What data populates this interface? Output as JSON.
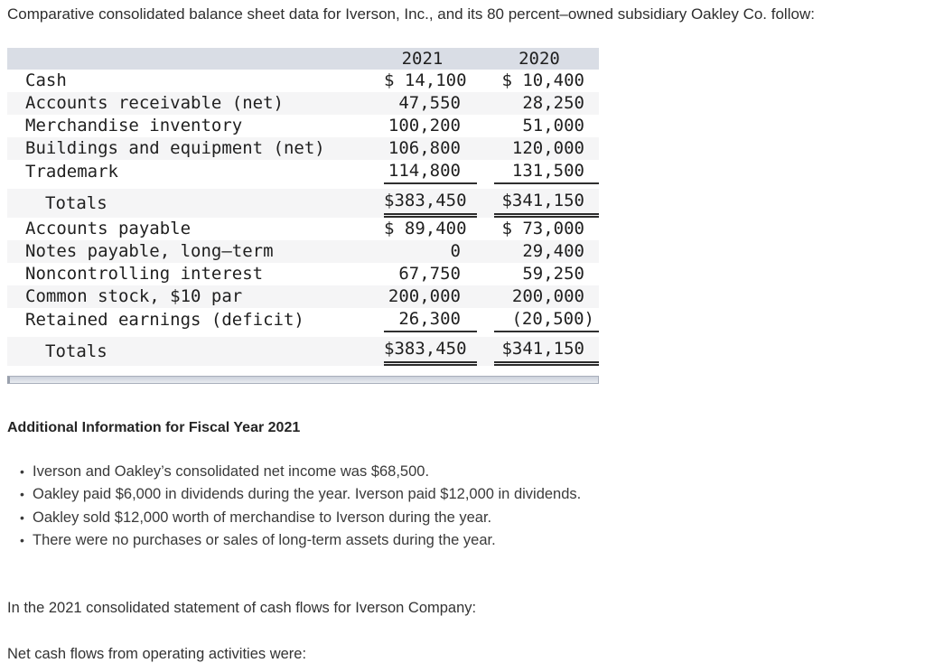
{
  "intro": "Comparative consolidated balance sheet data for Iverson, Inc., and its 80 percent–owned subsidiary Oakley Co. follow:",
  "balance_sheet": {
    "columns": {
      "year1": "2021",
      "year2": "2020"
    },
    "sections": [
      {
        "rows": [
          {
            "label": "Cash",
            "y2021": "$ 14,100",
            "y2020": "$ 10,400"
          },
          {
            "label": "Accounts receivable (net)",
            "y2021": "47,550",
            "y2020": "28,250"
          },
          {
            "label": "Merchandise inventory",
            "y2021": "100,200",
            "y2020": "51,000"
          },
          {
            "label": "Buildings and equipment (net)",
            "y2021": "106,800",
            "y2020": "120,000"
          },
          {
            "label": "Trademark",
            "y2021": "114,800",
            "y2020": "131,500",
            "rule_below": true
          }
        ],
        "total": {
          "label": "Totals",
          "y2021": "$383,450",
          "y2020": "$341,150"
        }
      },
      {
        "rows": [
          {
            "label": "Accounts payable",
            "y2021": "$ 89,400",
            "y2020": "$ 73,000"
          },
          {
            "label": "Notes payable, long–term",
            "y2021": "0",
            "y2020": "29,400"
          },
          {
            "label": "Noncontrolling interest",
            "y2021": "67,750",
            "y2020": "59,250"
          },
          {
            "label": "Common stock, $10 par",
            "y2021": "200,000",
            "y2020": "200,000"
          },
          {
            "label": "Retained earnings (deficit)",
            "y2021": "26,300",
            "y2020": "(20,500)",
            "rule_below": true
          }
        ],
        "total": {
          "label": "Totals",
          "y2021": "$383,450",
          "y2020": "$341,150"
        }
      }
    ]
  },
  "additional_info": {
    "heading": "Additional Information for Fiscal Year 2021",
    "bullet_glyph": "•",
    "bullets": [
      "Iverson and Oakley’s consolidated net income was $68,500.",
      "Oakley paid $6,000 in dividends during the year. Iverson paid $12,000 in dividends.",
      "Oakley sold $12,000 worth of merchandise to Iverson during the year.",
      "There were no purchases or sales of long-term assets during the year."
    ]
  },
  "closing": {
    "line1": "In the 2021 consolidated statement of cash flows for Iverson Company:",
    "line2": "Net cash flows from operating activities were:"
  },
  "colors": {
    "table_header_bg": "#d9dde5",
    "shaded_row_bg": "#f5f5f6",
    "rule_color": "#2f2f2f",
    "scrollbar_track": "#ccd1db"
  }
}
